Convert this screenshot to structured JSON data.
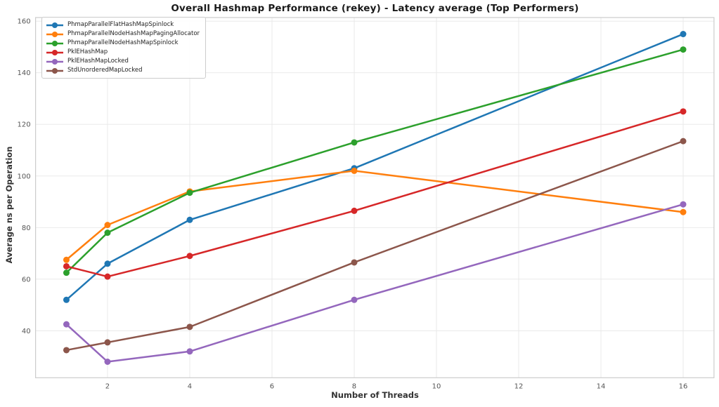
{
  "chart_data": {
    "type": "line",
    "title": "Overall Hashmap Performance (rekey) - Latency average (Top Performers)",
    "xlabel": "Number of Threads",
    "ylabel": "Average ns per Operation",
    "x": [
      1,
      2,
      4,
      8,
      16
    ],
    "x_ticks": [
      2,
      4,
      6,
      8,
      10,
      12,
      14,
      16
    ],
    "y_ticks": [
      40,
      60,
      80,
      100,
      120,
      140,
      160
    ],
    "xlim": [
      0.25,
      16.75
    ],
    "ylim": [
      21.8,
      161.4
    ],
    "grid": true,
    "legend_position": "upper-left",
    "series": [
      {
        "name": "PhmapParallelFlatHashMapSpinlock",
        "color": "#1f77b4",
        "values": [
          52,
          66,
          83,
          103,
          155
        ]
      },
      {
        "name": "PhmapParallelNodeHashMapPagingAllocator",
        "color": "#ff7f0e",
        "values": [
          67.5,
          81,
          94,
          102,
          86
        ]
      },
      {
        "name": "PhmapParallelNodeHashMapSpinlock",
        "color": "#2ca02c",
        "values": [
          62.5,
          78,
          93.5,
          113,
          149
        ]
      },
      {
        "name": "PklEHashMap",
        "color": "#d62728",
        "values": [
          65,
          61,
          69,
          86.5,
          125
        ]
      },
      {
        "name": "PklEHashMapLocked",
        "color": "#9467bd",
        "values": [
          42.5,
          28,
          32,
          52,
          89
        ]
      },
      {
        "name": "StdUnorderedMapLocked",
        "color": "#8c564b",
        "values": [
          32.5,
          35.5,
          41.5,
          66.5,
          113.5
        ]
      }
    ],
    "style": {
      "grid_color": "#e8e8e8",
      "spine_color": "#cccccc",
      "tick_label_color": "#555555",
      "line_width": 2.5,
      "marker_radius": 4.5
    }
  }
}
